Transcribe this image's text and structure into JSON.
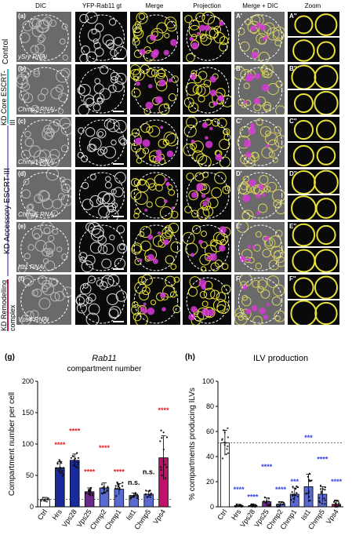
{
  "columns": [
    "DIC",
    "YFP-Rab11 gt",
    "Merge",
    "Projection",
    "Merge + DIC",
    "Zoom"
  ],
  "rows": [
    {
      "letter": "(a)",
      "prime": "A'",
      "zoom": "A''",
      "rnai": "ySry RNAi"
    },
    {
      "letter": "(b)",
      "prime": "B'",
      "zoom": "B''",
      "rnai": "Chmp2 RNAi"
    },
    {
      "letter": "(c)",
      "prime": "C'",
      "zoom": "C''",
      "rnai": "Chmp1 RNAi"
    },
    {
      "letter": "(d)",
      "prime": "D'",
      "zoom": "D''",
      "rnai": "Chmp5 RNAi"
    },
    {
      "letter": "(e)",
      "prime": "E'",
      "zoom": "E''",
      "rnai": "Ist1 RNAi"
    },
    {
      "letter": "(f)",
      "prime": "F'",
      "zoom": "F''",
      "rnai": "Vps4 RNAi"
    }
  ],
  "row_groups": [
    {
      "label": "Control",
      "color": ""
    },
    {
      "label": "KD Core ESCRT-III",
      "color": "#3fc1c9"
    },
    {
      "label": "KD Accessory ESCRT-III",
      "color": "#8c8ee0"
    },
    {
      "label": "KD Remodelling complex",
      "color": "#c2185b"
    }
  ],
  "colors": {
    "yellow": "#e8e23a",
    "magenta": "#d63ad6",
    "scatter_blue": "#2030a0",
    "scatter_magenta": "#c0106a",
    "sig_red": "#e02020",
    "sig_blue": "#3040e0"
  },
  "panels": [
    {
      "label": "(g)",
      "chart_data": {
        "type": "bar",
        "title": "Rab11",
        "subtitle": "compartment number",
        "ylabel": "Compartment number per cell",
        "ylim": [
          0,
          200
        ],
        "yticks": [
          "0",
          "50",
          "100",
          "150",
          "200"
        ],
        "categories": [
          "Ctrl",
          "Hrs",
          "Vps28",
          "Vps25",
          "Chmp2",
          "Chmp1",
          "Ist1",
          "Chmp5",
          "Vps4"
        ],
        "values": [
          12,
          62,
          74,
          24,
          30,
          28,
          18,
          20,
          78
        ],
        "errors": [
          3,
          10,
          10,
          6,
          8,
          9,
          4,
          5,
          35
        ],
        "fills": [
          "#ffffff",
          "#1a2a9a",
          "#1a2a9a",
          "#6a2a8a",
          "#5a6ad0",
          "#5a6ad0",
          "#5a6ad0",
          "#5a6ad0",
          "#c0106a"
        ],
        "significance": [
          {
            "text": "****",
            "category": "Hrs",
            "y": 95,
            "color": "#e02020"
          },
          {
            "text": "****",
            "category": "Vps28",
            "y": 117,
            "color": "#e02020"
          },
          {
            "text": "****",
            "category": "Vps25",
            "y": 52,
            "color": "#e02020"
          },
          {
            "text": "****",
            "category": "Chmp2",
            "y": 90,
            "color": "#e02020"
          },
          {
            "text": "****",
            "category": "Chmp1",
            "y": 52,
            "color": "#e02020"
          },
          {
            "text": "n.s.",
            "category": "Ist1",
            "y": 35,
            "color": "#000000"
          },
          {
            "text": "n.s.",
            "category": "Chmp5",
            "y": 52,
            "color": "#000000"
          },
          {
            "text": "****",
            "category": "Vps4",
            "y": 150,
            "color": "#e02020"
          }
        ],
        "reference_line": 12
      }
    },
    {
      "label": "(h)",
      "chart_data": {
        "type": "bar",
        "title": "ILV production",
        "ylabel": "% compartments producing ILVs",
        "ylim": [
          0,
          100
        ],
        "yticks": [
          "0",
          "20",
          "40",
          "60",
          "80",
          "100"
        ],
        "categories": [
          "Ctrl",
          "Hrs",
          "Vps28",
          "Vps25",
          "Chmp2",
          "Chmp1",
          "Ist1",
          "Chmp5",
          "Vps4"
        ],
        "values": [
          51,
          1,
          1,
          4,
          2,
          10,
          16,
          10,
          2
        ],
        "errors": [
          10,
          1,
          1,
          3,
          2,
          5,
          10,
          6,
          3
        ],
        "fills": [
          "#ffffff",
          "#1a2a9a",
          "#1a2a9a",
          "#6a2a8a",
          "#5a6ad0",
          "#5a6ad0",
          "#5a6ad0",
          "#5a6ad0",
          "#c0106a"
        ],
        "significance": [
          {
            "text": "****",
            "category": "Hrs",
            "y": 12,
            "color": "#3040e0"
          },
          {
            "text": "****",
            "category": "Vps28",
            "y": 6,
            "color": "#3040e0"
          },
          {
            "text": "****",
            "category": "Vps25",
            "y": 30,
            "color": "#3040e0"
          },
          {
            "text": "****",
            "category": "Chmp2",
            "y": 12,
            "color": "#3040e0"
          },
          {
            "text": "***",
            "category": "Chmp1",
            "y": 18,
            "color": "#3040e0"
          },
          {
            "text": "***",
            "category": "Ist1",
            "y": 53,
            "color": "#3040e0"
          },
          {
            "text": "****",
            "category": "Chmp5",
            "y": 36,
            "color": "#3040e0"
          },
          {
            "text": "****",
            "category": "Vps4",
            "y": 18,
            "color": "#3040e0"
          }
        ],
        "reference_line": 51
      }
    }
  ]
}
